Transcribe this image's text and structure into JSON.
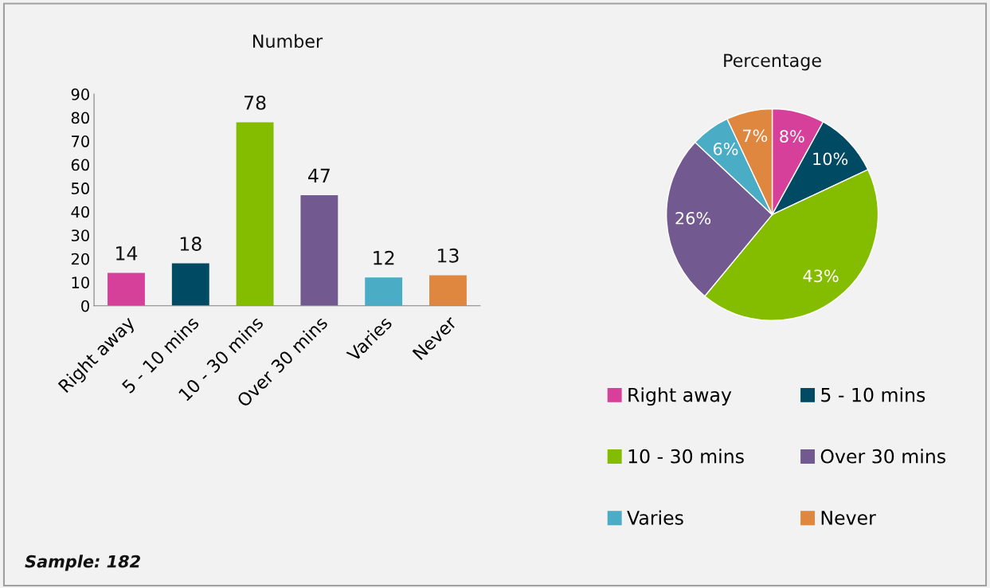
{
  "chart_data": [
    {
      "type": "bar",
      "title": "Number",
      "categories": [
        "Right away",
        "5 - 10 mins",
        "10 - 30 mins",
        "Over 30 mins",
        "Varies",
        "Never"
      ],
      "values": [
        14,
        18,
        78,
        47,
        12,
        13
      ],
      "colors": [
        "#d6409a",
        "#004a63",
        "#84bd00",
        "#725a91",
        "#4bacc6",
        "#e0873f"
      ],
      "ylim": [
        0,
        90
      ],
      "yticks": [
        0,
        10,
        20,
        30,
        40,
        50,
        60,
        70,
        80,
        90
      ],
      "data_labels": true,
      "grid": false,
      "annotations": [
        "Sample: 182"
      ]
    },
    {
      "type": "pie",
      "title": "Percentage",
      "categories": [
        "Right away",
        "5 - 10 mins",
        "10 - 30 mins",
        "Over 30 mins",
        "Varies",
        "Never"
      ],
      "values": [
        8,
        10,
        43,
        26,
        6,
        7
      ],
      "colors": [
        "#d6409a",
        "#004a63",
        "#84bd00",
        "#725a91",
        "#4bacc6",
        "#e0873f"
      ],
      "value_labels": [
        "8%",
        "10%",
        "43%",
        "26%",
        "6%",
        "7%"
      ],
      "legend": "bottom"
    }
  ]
}
